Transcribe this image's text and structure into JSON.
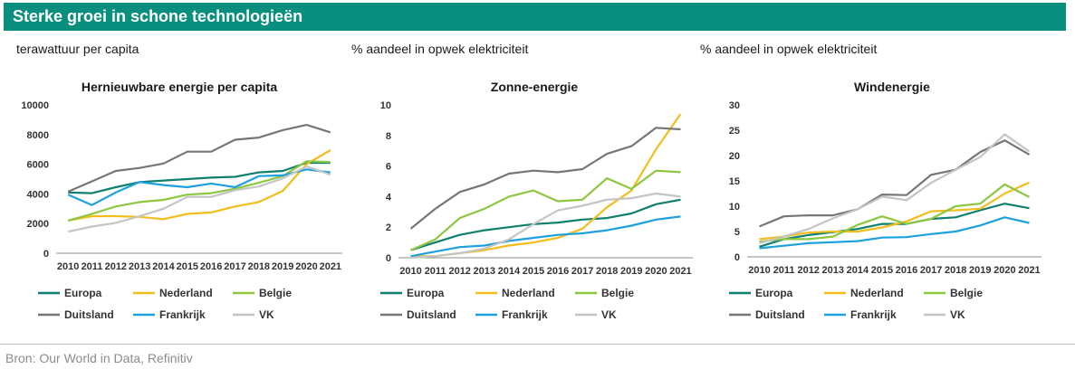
{
  "header": {
    "title": "Sterke groei in schone technologieën"
  },
  "source": "Bron: Our World in Data, Refinitiv",
  "colors": {
    "Europa": "#0f7f6f",
    "Nederland": "#f2bd1d",
    "Belgie": "#8dc63f",
    "Duitsland": "#767676",
    "Frankrijk": "#1ca1dc",
    "VK": "#c4c4c4"
  },
  "chart_data": [
    {
      "type": "line",
      "unit_label": "terawattuur per capita",
      "title": "Hernieuwbare energie per capita",
      "x": [
        "2010",
        "2011",
        "2012",
        "2013",
        "2014",
        "2015",
        "2016",
        "2017",
        "2018",
        "2019",
        "2020",
        "2021"
      ],
      "ylim": [
        0,
        10000
      ],
      "yticks": [
        0,
        2000,
        4000,
        6000,
        8000,
        10000
      ],
      "legend_position": "bottom",
      "series": [
        {
          "name": "Europa",
          "values": [
            4100,
            4050,
            4450,
            4800,
            4900,
            5000,
            5100,
            5150,
            5450,
            5550,
            6100,
            6100
          ]
        },
        {
          "name": "Nederland",
          "values": [
            2200,
            2500,
            2500,
            2450,
            2300,
            2650,
            2750,
            3150,
            3450,
            4200,
            6000,
            6950
          ]
        },
        {
          "name": "Belgie",
          "values": [
            2200,
            2650,
            3150,
            3450,
            3600,
            3950,
            4050,
            4350,
            4750,
            5200,
            6200,
            6150
          ]
        },
        {
          "name": "Duitsland",
          "values": [
            4150,
            4850,
            5550,
            5750,
            6050,
            6850,
            6850,
            7650,
            7800,
            8300,
            8650,
            8150
          ]
        },
        {
          "name": "Frankrijk",
          "values": [
            3950,
            3250,
            4100,
            4800,
            4600,
            4450,
            4700,
            4450,
            5200,
            5250,
            5650,
            5450
          ]
        },
        {
          "name": "VK",
          "values": [
            1450,
            1800,
            2050,
            2500,
            3000,
            3800,
            3800,
            4250,
            4500,
            5050,
            5850,
            5300
          ]
        }
      ]
    },
    {
      "type": "line",
      "unit_label": "% aandeel in opwek elektriciteit",
      "title": "Zonne-energie",
      "x": [
        "2010",
        "2011",
        "2012",
        "2013",
        "2014",
        "2015",
        "2016",
        "2017",
        "2018",
        "2019",
        "2020",
        "2021"
      ],
      "ylim": [
        0,
        10
      ],
      "yticks": [
        0,
        2,
        4,
        6,
        8,
        10
      ],
      "legend_position": "bottom",
      "series": [
        {
          "name": "Europa",
          "values": [
            0.5,
            1.0,
            1.5,
            1.8,
            2.0,
            2.2,
            2.3,
            2.5,
            2.6,
            2.9,
            3.5,
            3.8
          ]
        },
        {
          "name": "Nederland",
          "values": [
            0.1,
            0.1,
            0.3,
            0.5,
            0.8,
            1.0,
            1.3,
            1.9,
            3.3,
            4.4,
            7.1,
            9.4
          ]
        },
        {
          "name": "Belgie",
          "values": [
            0.5,
            1.2,
            2.6,
            3.2,
            4.0,
            4.4,
            3.7,
            3.8,
            5.2,
            4.5,
            5.7,
            5.6
          ]
        },
        {
          "name": "Duitsland",
          "values": [
            1.9,
            3.2,
            4.3,
            4.8,
            5.5,
            5.7,
            5.6,
            5.8,
            6.8,
            7.3,
            8.5,
            8.4
          ]
        },
        {
          "name": "Frankrijk",
          "values": [
            0.1,
            0.4,
            0.7,
            0.8,
            1.1,
            1.3,
            1.5,
            1.6,
            1.8,
            2.1,
            2.5,
            2.7
          ]
        },
        {
          "name": "VK",
          "values": [
            0.0,
            0.1,
            0.3,
            0.6,
            1.2,
            2.2,
            3.1,
            3.4,
            3.8,
            3.9,
            4.2,
            4.0
          ]
        }
      ]
    },
    {
      "type": "line",
      "unit_label": "% aandeel in opwek elektriciteit",
      "title": "Windenergie",
      "x": [
        "2010",
        "2011",
        "2012",
        "2013",
        "2014",
        "2015",
        "2016",
        "2017",
        "2018",
        "2019",
        "2020",
        "2021"
      ],
      "ylim": [
        0,
        30
      ],
      "yticks": [
        0,
        5,
        10,
        15,
        20,
        25,
        30
      ],
      "legend_position": "bottom",
      "series": [
        {
          "name": "Europa",
          "values": [
            2.0,
            3.5,
            4.3,
            4.9,
            5.5,
            6.5,
            6.5,
            7.5,
            7.8,
            9.2,
            10.5,
            9.6
          ]
        },
        {
          "name": "Nederland",
          "values": [
            3.5,
            4.0,
            4.8,
            5.0,
            5.0,
            5.8,
            7.0,
            9.0,
            9.2,
            9.5,
            12.5,
            14.7
          ]
        },
        {
          "name": "Belgie",
          "values": [
            3.0,
            3.5,
            3.5,
            4.0,
            6.3,
            8.0,
            6.5,
            7.5,
            10.0,
            10.5,
            14.3,
            11.8
          ]
        },
        {
          "name": "Duitsland",
          "values": [
            6.0,
            8.0,
            8.2,
            8.2,
            9.4,
            12.3,
            12.2,
            16.2,
            17.2,
            20.7,
            23.0,
            20.2
          ]
        },
        {
          "name": "Frankrijk",
          "values": [
            1.7,
            2.2,
            2.7,
            2.9,
            3.1,
            3.8,
            3.9,
            4.5,
            5.0,
            6.2,
            7.8,
            6.7
          ]
        },
        {
          "name": "VK",
          "values": [
            2.7,
            4.0,
            5.5,
            7.6,
            9.4,
            11.9,
            11.2,
            14.6,
            17.2,
            19.7,
            24.2,
            20.8
          ]
        }
      ]
    }
  ]
}
